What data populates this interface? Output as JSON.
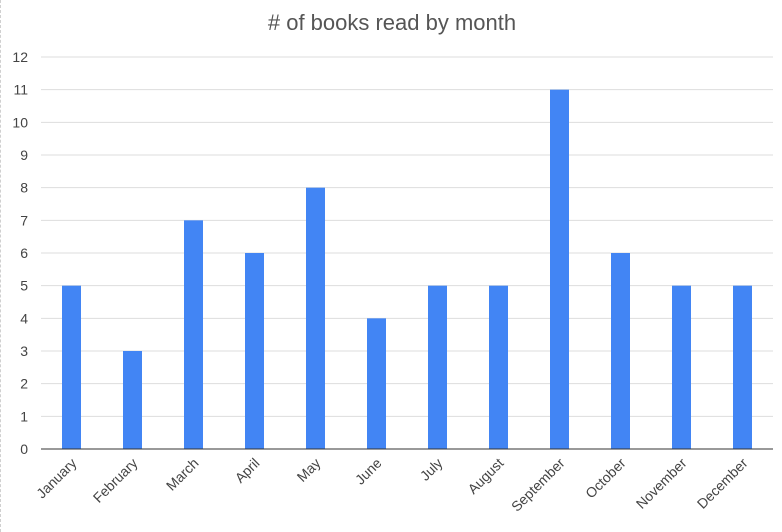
{
  "chart_data": {
    "type": "bar",
    "title": "# of books read by month",
    "xlabel": "",
    "ylabel": "",
    "categories": [
      "January",
      "February",
      "March",
      "April",
      "May",
      "June",
      "July",
      "August",
      "September",
      "October",
      "November",
      "December"
    ],
    "values": [
      5,
      3,
      7,
      6,
      8,
      4,
      5,
      5,
      11,
      6,
      5,
      5
    ],
    "ylim": [
      0,
      12
    ],
    "yticks": [
      0,
      1,
      2,
      3,
      4,
      5,
      6,
      7,
      8,
      9,
      10,
      11,
      12
    ],
    "grid": true,
    "legend": "none",
    "bar_color": "#4285f4",
    "grid_color": "#dddddd",
    "axis_color": "#333333",
    "label_color": "#444444"
  }
}
